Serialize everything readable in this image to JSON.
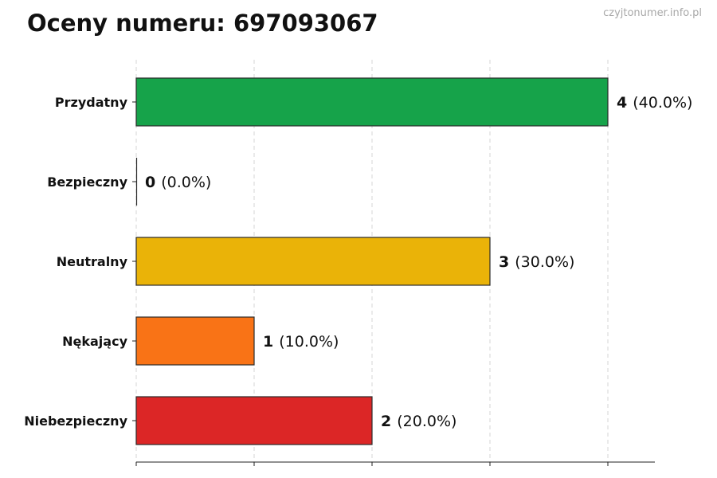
{
  "header": {
    "title": "Oceny numeru: 697093067",
    "watermark": "czyjtonumer.info.pl"
  },
  "chart_data": {
    "type": "bar",
    "orientation": "horizontal",
    "title": "Oceny numeru: 697093067",
    "categories": [
      "Przydatny",
      "Bezpieczny",
      "Neutralny",
      "Nękający",
      "Niebezpieczny"
    ],
    "values": [
      4,
      0,
      3,
      1,
      2
    ],
    "percent_labels": [
      "(40.0%)",
      "(0.0%)",
      "(30.0%)",
      "(10.0%)",
      "(20.0%)"
    ],
    "colors": [
      "#16a34a",
      "#9ca3af",
      "#eab308",
      "#f97316",
      "#dc2626"
    ],
    "xlim": [
      0,
      4.4
    ],
    "xticks": [
      0,
      1,
      2,
      3,
      4
    ],
    "x_tick_labels_visible": false,
    "grid": "x-dashed",
    "xlabel": "",
    "ylabel": ""
  }
}
